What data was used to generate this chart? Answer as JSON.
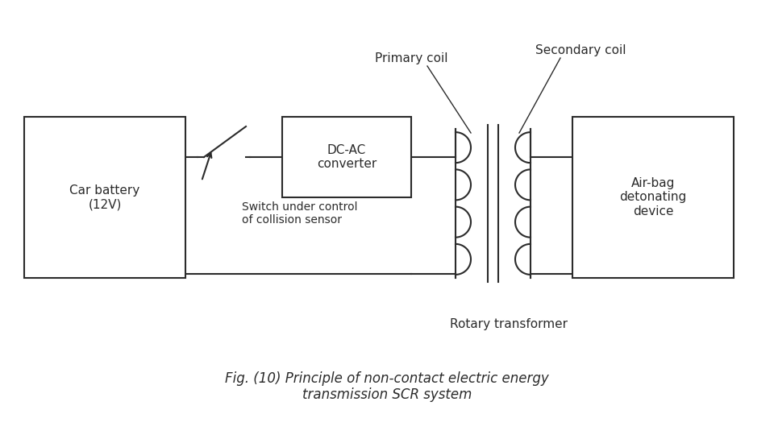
{
  "bg_color": "#ffffff",
  "line_color": "#2b2b2b",
  "title": "Fig. (10) Principle of non-contact electric energy\ntransmission SCR system",
  "title_fontsize": 12,
  "label_fontsize": 11,
  "small_fontsize": 10,
  "car_battery_label": "Car battery\n(12V)",
  "dc_ac_label": "DC-AC\nconverter",
  "airbag_label": "Air-bag\ndetonating\ndevice",
  "switch_label": "Switch under control\nof collision sensor",
  "rotary_transformer_label": "Rotary transformer",
  "primary_coil_label": "Primary coil",
  "secondary_coil_label": "Secondary coil"
}
